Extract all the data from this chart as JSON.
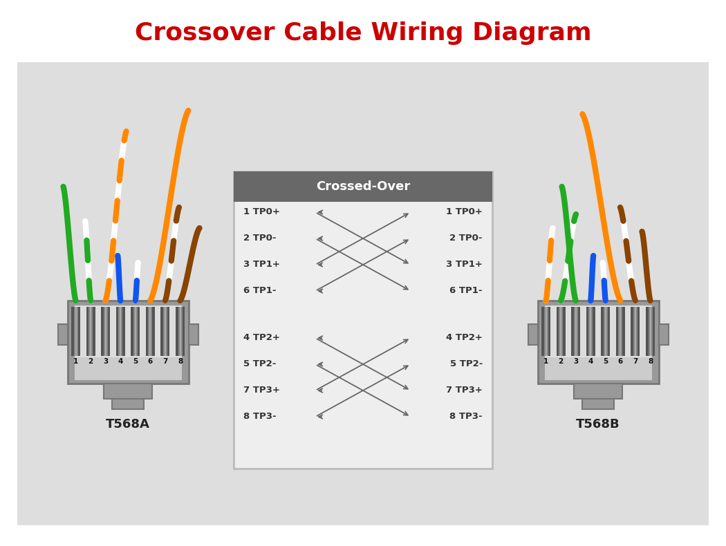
{
  "title": "Crossover Cable Wiring Diagram",
  "title_color": "#cc0000",
  "title_fontsize": 26,
  "fig_bg": "#ffffff",
  "panel_bg": "#dedede",
  "box_header_bg": "#686868",
  "box_content_bg": "#eeeeee",
  "box_border": "#aaaaaa",
  "label_A": "T568A",
  "label_B": "T568B",
  "header_text": "Crossed-Over",
  "left_rows": [
    "1 TP0+",
    "2 TP0-",
    "3 TP1+",
    "6 TP1-",
    "4 TP2+",
    "5 TP2-",
    "7 TP3+",
    "8 TP3-"
  ],
  "right_rows": [
    "1 TP0+",
    "2 TP0-",
    "3 TP1+",
    "6 TP1-",
    "4 TP2+",
    "5 TP2-",
    "7 TP3+",
    "8 TP3-"
  ],
  "wire_colors_A": [
    [
      "#22aa22",
      null
    ],
    [
      "#ffffff",
      "#22aa22"
    ],
    [
      "#ffffff",
      "#ff8800"
    ],
    [
      "#1155ee",
      null
    ],
    [
      "#ffffff",
      "#1155ee"
    ],
    [
      "#ff8800",
      null
    ],
    [
      "#ffffff",
      "#884400"
    ],
    [
      "#884400",
      null
    ]
  ],
  "wire_colors_B": [
    [
      "#ffffff",
      "#ff8800"
    ],
    [
      "#ffffff",
      "#22aa22"
    ],
    [
      "#22aa22",
      null
    ],
    [
      "#1155ee",
      null
    ],
    [
      "#ffffff",
      "#1155ee"
    ],
    [
      "#ff8800",
      null
    ],
    [
      "#ffffff",
      "#884400"
    ],
    [
      "#884400",
      null
    ]
  ]
}
